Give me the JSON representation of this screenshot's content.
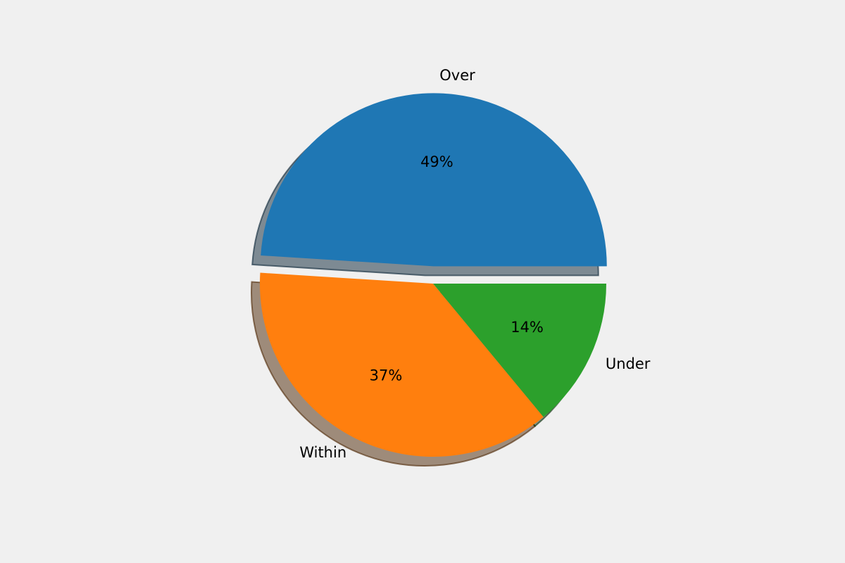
{
  "chart_data": {
    "type": "pie",
    "categories": [
      "Over",
      "Within",
      "Under"
    ],
    "values": [
      49,
      37,
      14
    ],
    "value_labels": [
      "49%",
      "37%",
      "14%"
    ],
    "colors": [
      "#1f77b4",
      "#ff7f0e",
      "#2ca02c"
    ],
    "explode": [
      0.1,
      0,
      0
    ],
    "startangle": 0,
    "shadow": true
  }
}
